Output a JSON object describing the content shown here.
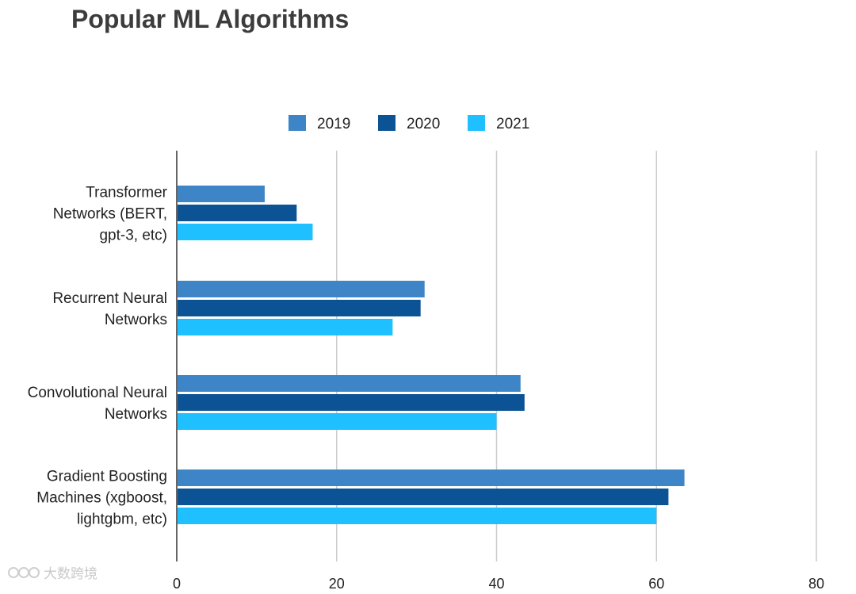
{
  "chart_data": {
    "type": "bar",
    "orientation": "horizontal",
    "title": "Popular ML Algorithms",
    "categories": [
      [
        "Transformer",
        "Networks (BERT,",
        "gpt-3, etc)"
      ],
      [
        "Recurrent Neural",
        "Networks"
      ],
      [
        "Convolutional Neural",
        "Networks"
      ],
      [
        "Gradient Boosting",
        "Machines (xgboost,",
        "lightgbm, etc)"
      ]
    ],
    "series": [
      {
        "name": "2019",
        "color": "#3d85c6",
        "values": [
          11,
          31,
          43,
          63.5
        ]
      },
      {
        "name": "2020",
        "color": "#0b5394",
        "values": [
          15,
          30.5,
          43.5,
          61.5
        ]
      },
      {
        "name": "2021",
        "color": "#1fc0ff",
        "values": [
          17,
          27,
          40,
          60
        ]
      }
    ],
    "xlim": [
      0,
      80
    ],
    "xticks": [
      0,
      20,
      40,
      60,
      80
    ],
    "legend_position": "top-center",
    "grid": true,
    "xlabel": "",
    "ylabel": ""
  },
  "watermark": "大数跨境"
}
